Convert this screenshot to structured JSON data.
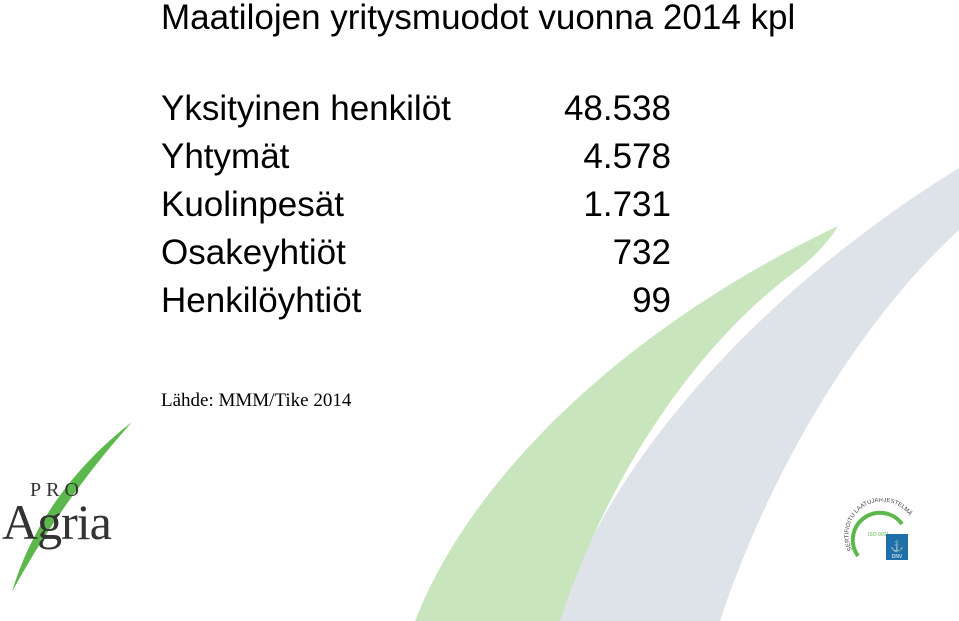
{
  "title": "Maatilojen yritysmuodot vuonna 2014 kpl",
  "rows": [
    {
      "label": "Yksityinen henkilöt",
      "value": "48.538"
    },
    {
      "label": "Yhtymät",
      "value": "4.578"
    },
    {
      "label": "Kuolinpesät",
      "value": "1.731"
    },
    {
      "label": "Osakeyhtiöt",
      "value": "732"
    },
    {
      "label": "Henkilöyhtiöt",
      "value": "99"
    }
  ],
  "source": "Lähde: MMM/Tike 2014",
  "logo": {
    "top": "PRO",
    "bottom": "Agria"
  },
  "cert": {
    "arc_text": "SERTIFIOITU LAATUJÄRJESTELMÄ",
    "iso": "ISO 9001",
    "badge": "DNV"
  },
  "colors": {
    "green_light": "#c9e5be",
    "green_logo": "#5cb84c",
    "grey_swoosh": "#dde3e8"
  }
}
